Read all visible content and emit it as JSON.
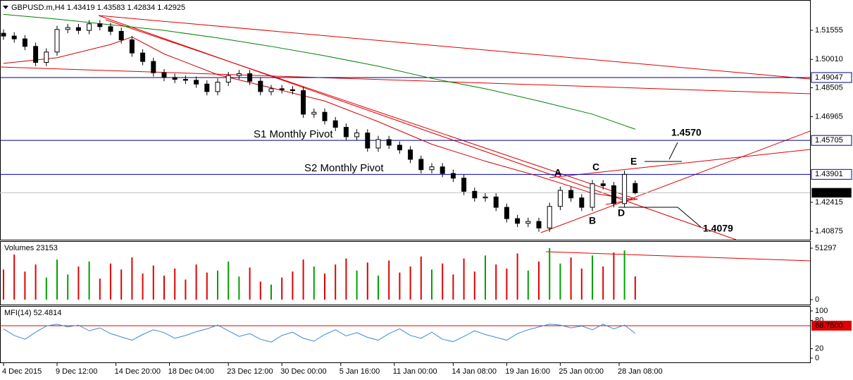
{
  "chart_data": [
    {
      "type": "candlestick",
      "title": "GBPUSD.m,H4  1.43419 1.43583 1.42834 1.42925",
      "ylim": [
        1.4043,
        1.5309
      ],
      "yticks": [
        1.51555,
        {
          "value": 1.5001,
          "label": "1.50010"
        },
        1.48505,
        1.46965,
        1.42415,
        1.40875
      ],
      "xticks": [
        {
          "value": 0,
          "label": "4 Dec 2015"
        },
        {
          "value": 5,
          "label": "9 Dec 12:00"
        },
        {
          "value": 10.5,
          "label": "14 Dec 20:00"
        },
        {
          "value": 15.5,
          "label": "18 Dec 04:00"
        },
        {
          "value": 21,
          "label": "23 Dec 12:00"
        },
        {
          "value": 26,
          "label": "30 Dec 00:00"
        },
        {
          "value": 31.5,
          "label": "5 Jan 16:00"
        },
        {
          "value": 36.5,
          "label": "11 Jan 00:00"
        },
        {
          "value": 42,
          "label": "14 Jan 08:00"
        },
        {
          "value": 47,
          "label": "19 Jan 16:00"
        },
        {
          "value": 52,
          "label": "25 Jan 00:00"
        },
        {
          "value": 57.5,
          "label": "28 Jan 08:00"
        }
      ],
      "open": [
        1.514,
        1.5125,
        1.511,
        1.507,
        1.4985,
        1.504,
        1.516,
        1.517,
        1.5155,
        1.519,
        1.5175,
        1.515,
        1.5105,
        1.5035,
        1.499,
        1.493,
        1.4905,
        1.4895,
        1.489,
        1.487,
        1.483,
        1.488,
        1.4915,
        1.4925,
        1.4885,
        1.483,
        1.4845,
        1.484,
        1.4835,
        1.471,
        1.472,
        1.4675,
        1.464,
        1.459,
        1.461,
        1.453,
        1.4575,
        1.4545,
        1.452,
        1.447,
        1.4415,
        1.443,
        1.4395,
        1.437,
        1.43,
        1.4265,
        1.427,
        1.4215,
        1.4155,
        1.413,
        1.414,
        1.4105,
        1.422,
        1.4305,
        1.4265,
        1.4215,
        1.434,
        1.433,
        1.4235,
        1.43419
      ],
      "high": [
        1.516,
        1.5145,
        1.513,
        1.509,
        1.506,
        1.518,
        1.519,
        1.519,
        1.521,
        1.521,
        1.5195,
        1.517,
        1.5125,
        1.5055,
        1.501,
        1.495,
        1.4925,
        1.4915,
        1.491,
        1.489,
        1.49,
        1.4935,
        1.4945,
        1.4945,
        1.4905,
        1.4865,
        1.4865,
        1.486,
        1.4855,
        1.474,
        1.474,
        1.4695,
        1.466,
        1.463,
        1.463,
        1.4595,
        1.4595,
        1.4565,
        1.454,
        1.449,
        1.445,
        1.445,
        1.4415,
        1.439,
        1.432,
        1.429,
        1.429,
        1.4235,
        1.4175,
        1.416,
        1.416,
        1.424,
        1.4325,
        1.4325,
        1.4285,
        1.436,
        1.436,
        1.435,
        1.441,
        1.43583
      ],
      "low": [
        1.5105,
        1.509,
        1.505,
        1.4965,
        1.4965,
        1.502,
        1.514,
        1.5135,
        1.5135,
        1.5155,
        1.513,
        1.5085,
        1.5015,
        1.497,
        1.491,
        1.4885,
        1.4875,
        1.487,
        1.485,
        1.481,
        1.481,
        1.486,
        1.4895,
        1.4865,
        1.481,
        1.481,
        1.482,
        1.4815,
        1.469,
        1.469,
        1.4655,
        1.462,
        1.457,
        1.457,
        1.451,
        1.451,
        1.4525,
        1.45,
        1.445,
        1.4395,
        1.4395,
        1.4375,
        1.435,
        1.428,
        1.4245,
        1.4245,
        1.4195,
        1.4135,
        1.411,
        1.411,
        1.4085,
        1.4085,
        1.42,
        1.4245,
        1.4195,
        1.4195,
        1.431,
        1.4215,
        1.4215,
        1.42834
      ],
      "close": [
        1.5125,
        1.511,
        1.507,
        1.4985,
        1.504,
        1.516,
        1.517,
        1.5155,
        1.519,
        1.5175,
        1.515,
        1.5105,
        1.5035,
        1.499,
        1.493,
        1.4905,
        1.4895,
        1.489,
        1.487,
        1.483,
        1.488,
        1.4915,
        1.4925,
        1.4885,
        1.483,
        1.4845,
        1.484,
        1.4835,
        1.471,
        1.472,
        1.4675,
        1.464,
        1.459,
        1.461,
        1.453,
        1.4575,
        1.4545,
        1.452,
        1.447,
        1.4415,
        1.443,
        1.4395,
        1.437,
        1.43,
        1.4265,
        1.427,
        1.4215,
        1.4155,
        1.413,
        1.414,
        1.4105,
        1.422,
        1.4305,
        1.4265,
        1.4215,
        1.434,
        1.433,
        1.4235,
        1.439,
        1.42925
      ],
      "up_color": "#ffffff",
      "down_color": "#000000",
      "overlays": [
        {
          "color": "#d00000",
          "x": [
            0,
            5,
            10,
            12,
            15,
            20,
            25,
            30,
            35,
            40,
            45,
            50,
            55,
            59
          ],
          "values": [
            1.498,
            1.501,
            1.508,
            1.512,
            1.503,
            1.492,
            1.485,
            1.478,
            1.467,
            1.455,
            1.446,
            1.438,
            1.429,
            1.4255
          ]
        },
        {
          "color": "#008000",
          "x": [
            0,
            5,
            10,
            15,
            20,
            25,
            30,
            35,
            40,
            45,
            50,
            55,
            59
          ],
          "values": [
            1.524,
            1.5215,
            1.5185,
            1.5155,
            1.5115,
            1.507,
            1.502,
            1.4965,
            1.49,
            1.4845,
            1.478,
            1.471,
            1.463
          ]
        }
      ],
      "levels": [
        {
          "value": 1.49047,
          "label": "1.49047",
          "color": "#000080",
          "box": "#ffffff",
          "text_color": "#000000"
        },
        {
          "value": 1.45705,
          "label": "1.45705",
          "color": "#000080",
          "box": "#ffffff",
          "text_color": "#000000"
        },
        {
          "value": 1.43901,
          "label": "1.43901",
          "color": "#0000c0",
          "box": "#ffffff",
          "text_color": "#000000"
        },
        {
          "value": 1.42925,
          "label": "1.42925",
          "color": "#c0c0c0",
          "box": "#000000",
          "text_color": "#ffffff"
        }
      ],
      "annotations": [
        "S1 Monthly Pivot",
        "S2 Monthly Pivot",
        "A",
        "B",
        "C",
        "D",
        "E",
        "1.4570",
        "1.4079"
      ]
    },
    {
      "type": "bar",
      "title": "Volumes 23153",
      "ylim": [
        0,
        51297
      ],
      "yticks": [
        0,
        51297
      ],
      "values": [
        30000,
        45000,
        28000,
        35000,
        22000,
        40000,
        25000,
        33000,
        38000,
        21000,
        36000,
        30000,
        42000,
        26000,
        34000,
        24000,
        31000,
        20000,
        35000,
        27000,
        29000,
        38000,
        23000,
        32000,
        18000,
        15000,
        22000,
        28000,
        40000,
        33000,
        26000,
        35000,
        41000,
        29000,
        37000,
        24000,
        39000,
        27000,
        33000,
        43000,
        30000,
        36000,
        25000,
        41000,
        28000,
        44000,
        35000,
        31000,
        46000,
        29000,
        38000,
        51297,
        36000,
        42000,
        31000,
        44000,
        33000,
        47000,
        49000,
        23153
      ],
      "up_color": "#00a000",
      "down_color": "#e00000"
    },
    {
      "type": "line",
      "title": "MFI(14) 52.4814",
      "ylim": [
        0,
        100
      ],
      "yticks": [
        0,
        20,
        80,
        100
      ],
      "values": [
        62,
        48,
        40,
        55,
        68,
        72,
        66,
        70,
        58,
        64,
        52,
        45,
        38,
        50,
        60,
        54,
        42,
        48,
        56,
        62,
        70,
        58,
        46,
        52,
        40,
        34,
        48,
        55,
        42,
        36,
        50,
        60,
        47,
        54,
        44,
        38,
        52,
        62,
        48,
        42,
        55,
        40,
        35,
        46,
        58,
        50,
        44,
        38,
        52,
        60,
        66,
        72,
        70,
        64,
        68,
        60,
        72,
        62,
        70,
        52.4814
      ],
      "color": "#3c8ad8",
      "level": {
        "value": 68.75,
        "label": "68.7500",
        "color": "#e00000"
      }
    }
  ]
}
